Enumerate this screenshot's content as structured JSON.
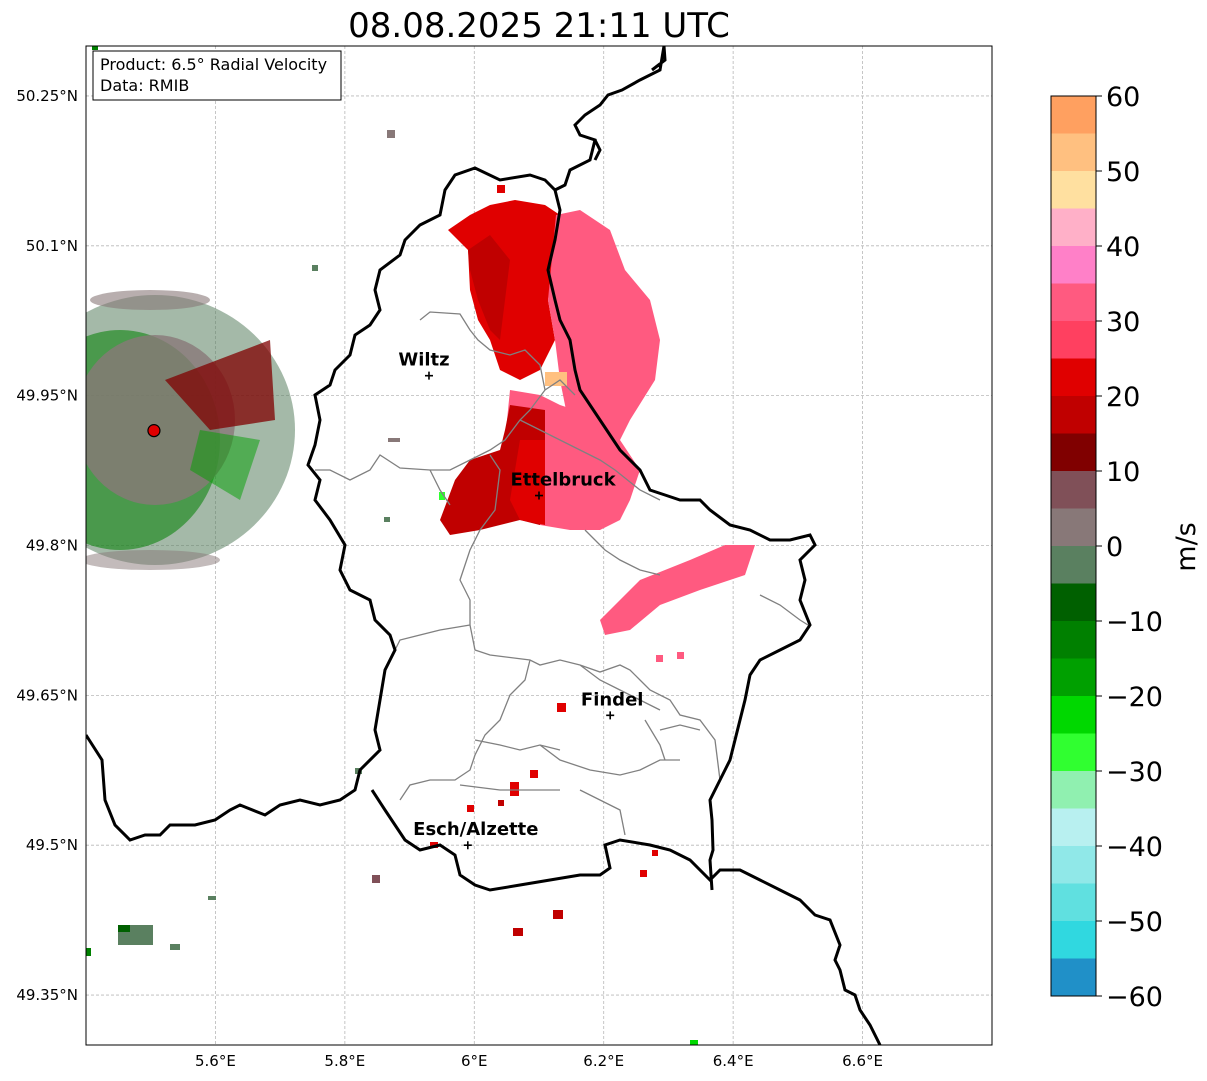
{
  "title": "08.08.2025 21:11 UTC",
  "info_box": {
    "product": "Product: 6.5° Radial Velocity",
    "data": "Data: RMIB"
  },
  "map": {
    "lon_range": [
      5.4,
      6.8
    ],
    "lat_range": [
      49.3,
      50.3
    ],
    "lon_ticks": [
      "5.6°E",
      "5.8°E",
      "6°E",
      "6.2°E",
      "6.4°E",
      "6.6°E"
    ],
    "lat_ticks": [
      "50.25°N",
      "50.1°N",
      "49.95°N",
      "49.8°N",
      "49.65°N",
      "49.5°N",
      "49.35°N"
    ],
    "grid": true,
    "cities": [
      {
        "name": "Wiltz",
        "lon": 5.93,
        "lat": 49.97
      },
      {
        "name": "Ettelbruck",
        "lon": 6.1,
        "lat": 49.85
      },
      {
        "name": "Findel",
        "lon": 6.21,
        "lat": 49.63
      },
      {
        "name": "Esch/Alzette",
        "lon": 5.99,
        "lat": 49.5
      }
    ],
    "radar_site": {
      "lon": 5.505,
      "lat": 49.915
    }
  },
  "colorbar": {
    "label": "m/s",
    "min": -60,
    "max": 60,
    "ticks": [
      "60",
      "50",
      "40",
      "30",
      "20",
      "10",
      "0",
      "−10",
      "−20",
      "−30",
      "−40",
      "−50",
      "−60"
    ],
    "colors": [
      {
        "from": 55,
        "to": 60,
        "color": "#ffa060"
      },
      {
        "from": 50,
        "to": 55,
        "color": "#ffc080"
      },
      {
        "from": 45,
        "to": 50,
        "color": "#ffe0a0"
      },
      {
        "from": 40,
        "to": 45,
        "color": "#ffb0c8"
      },
      {
        "from": 35,
        "to": 40,
        "color": "#ff80c8"
      },
      {
        "from": 30,
        "to": 35,
        "color": "#ff5a80"
      },
      {
        "from": 25,
        "to": 30,
        "color": "#ff4060"
      },
      {
        "from": 20,
        "to": 25,
        "color": "#e00000"
      },
      {
        "from": 15,
        "to": 20,
        "color": "#c00000"
      },
      {
        "from": 10,
        "to": 15,
        "color": "#800000"
      },
      {
        "from": 5,
        "to": 10,
        "color": "#805058"
      },
      {
        "from": 0,
        "to": 5,
        "color": "#887878"
      },
      {
        "from": -5,
        "to": 0,
        "color": "#5a8060"
      },
      {
        "from": -10,
        "to": -5,
        "color": "#006000"
      },
      {
        "from": -15,
        "to": -10,
        "color": "#008000"
      },
      {
        "from": -20,
        "to": -15,
        "color": "#00a000"
      },
      {
        "from": -25,
        "to": -20,
        "color": "#00d800"
      },
      {
        "from": -30,
        "to": -25,
        "color": "#30ff30"
      },
      {
        "from": -35,
        "to": -30,
        "color": "#90f0b0"
      },
      {
        "from": -40,
        "to": -35,
        "color": "#b8f0f0"
      },
      {
        "from": -45,
        "to": -40,
        "color": "#90e8e8"
      },
      {
        "from": -50,
        "to": -45,
        "color": "#60e0e0"
      },
      {
        "from": -55,
        "to": -50,
        "color": "#30d8e0"
      },
      {
        "from": -60,
        "to": -55,
        "color": "#2090c8"
      }
    ]
  }
}
